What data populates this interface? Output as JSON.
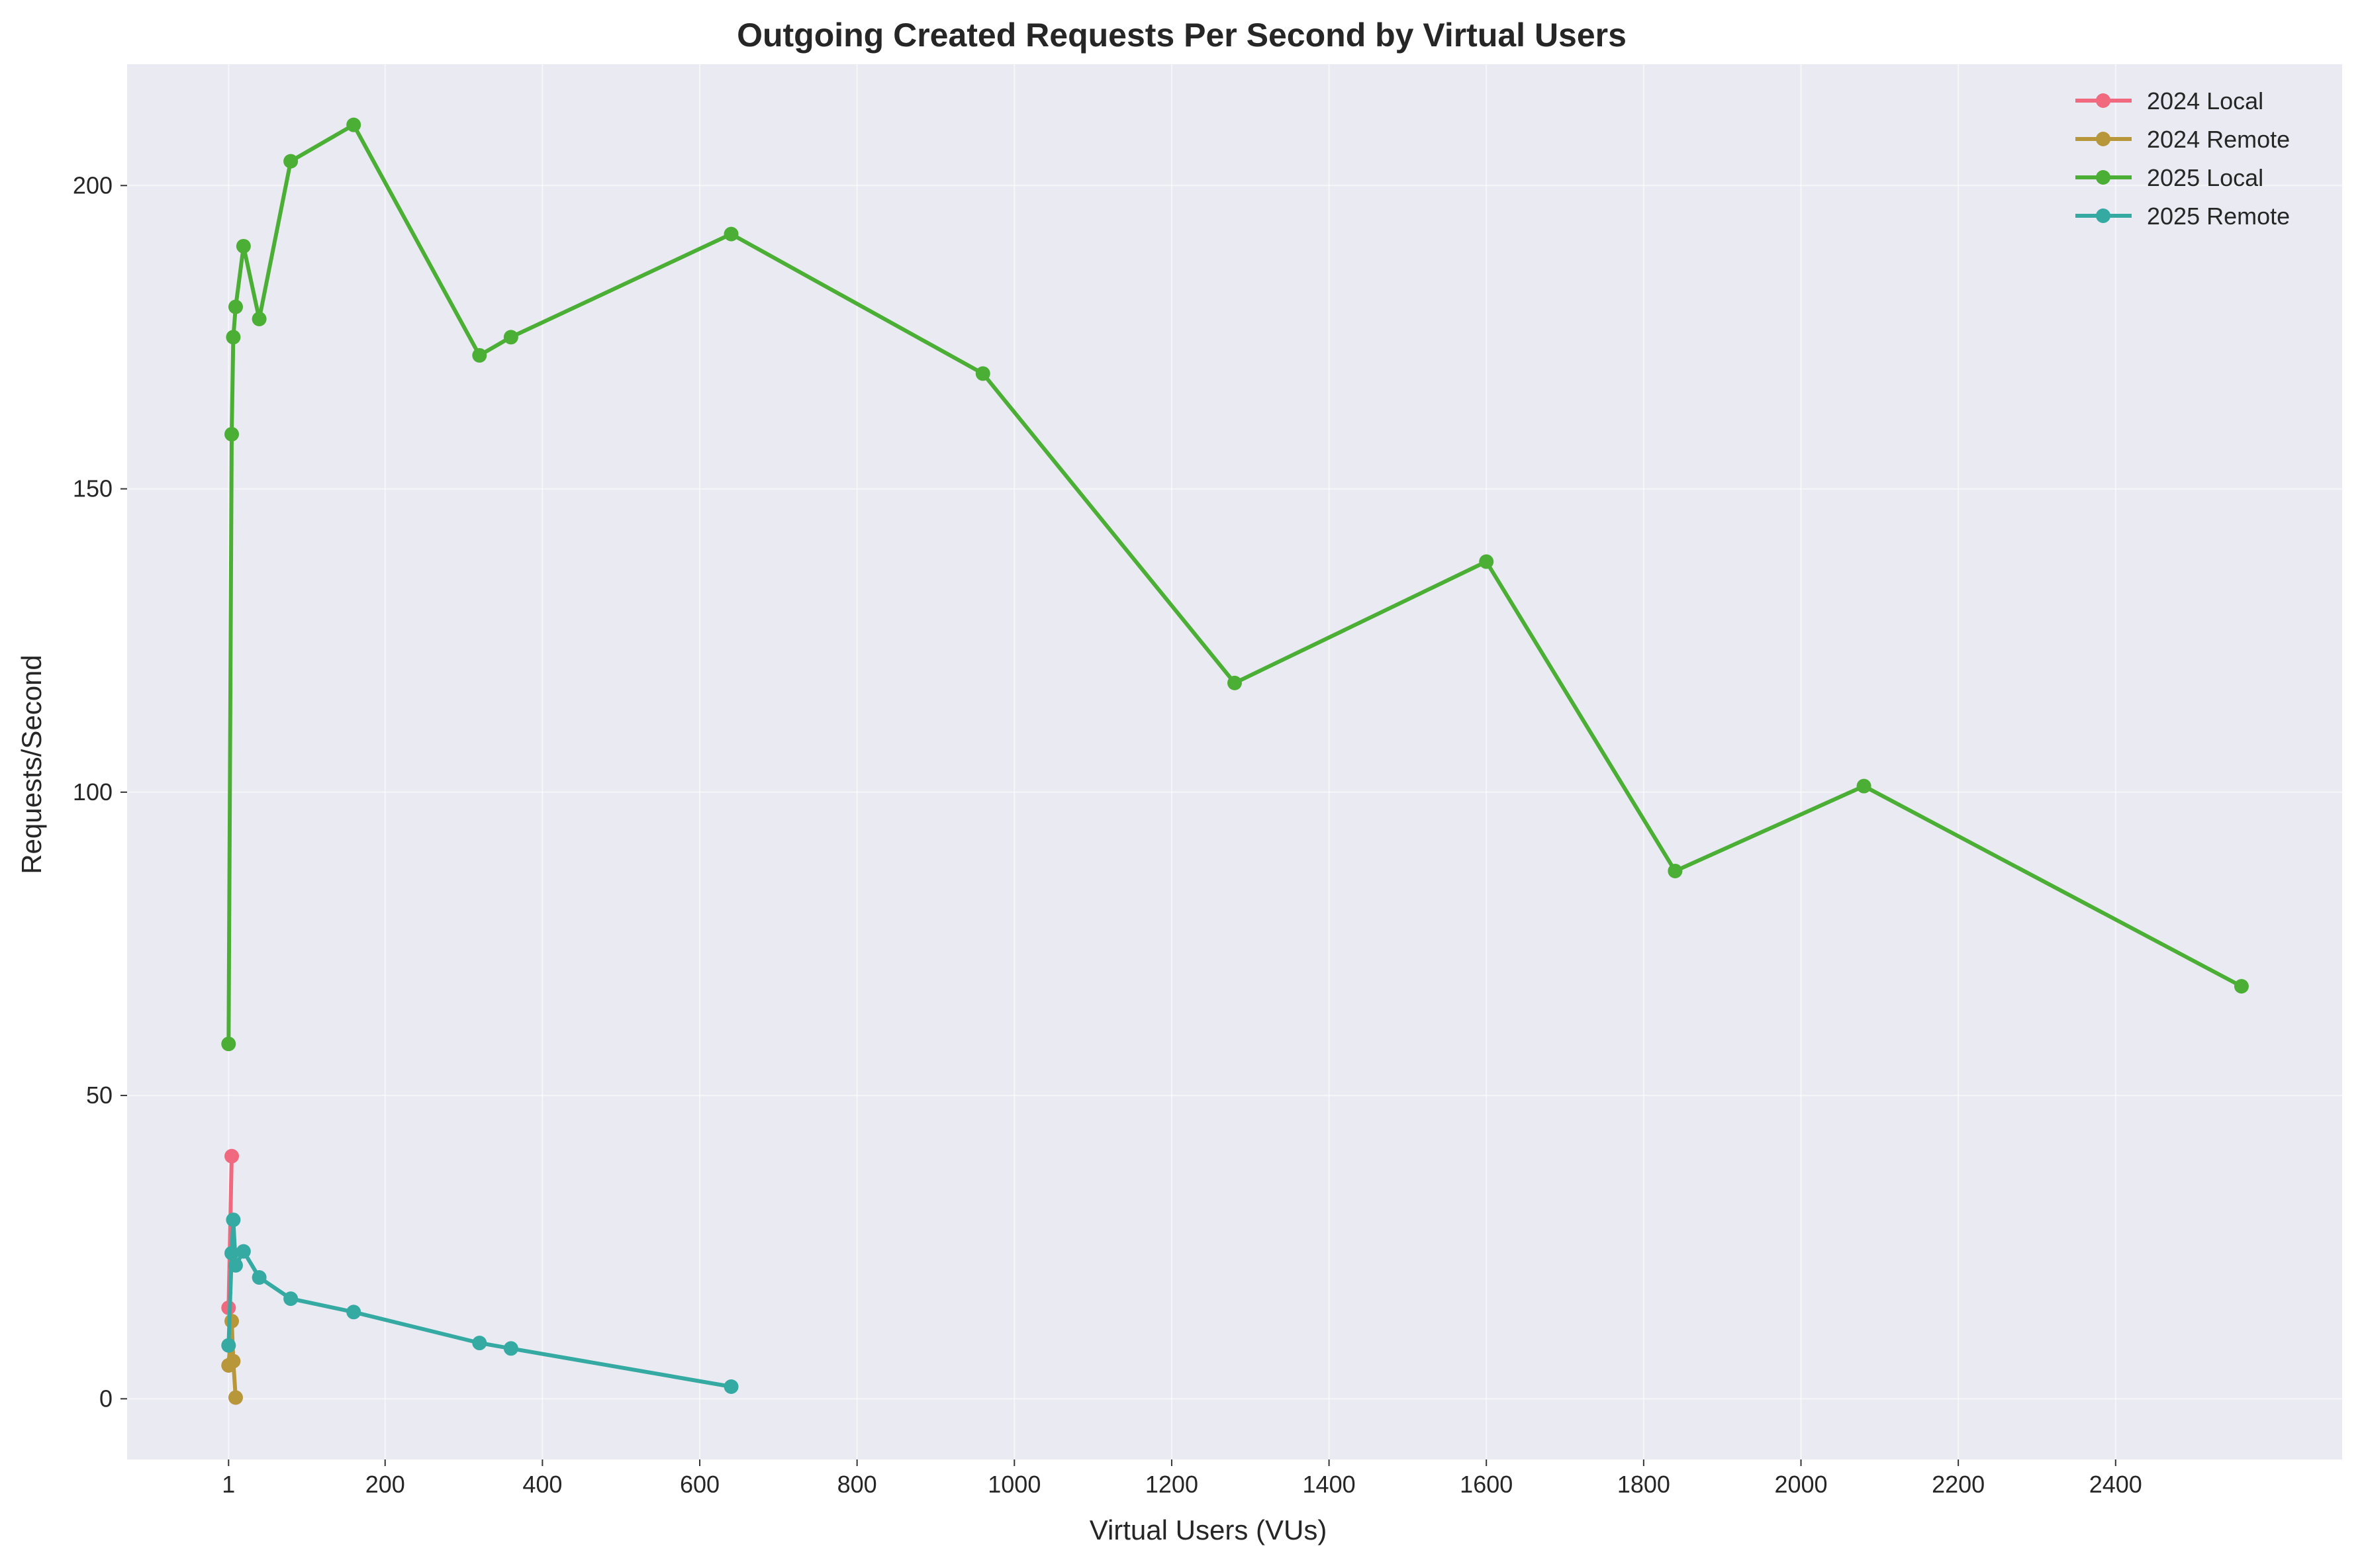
{
  "chart_data": {
    "type": "line",
    "title": "Outgoing Created Requests Per Second by Virtual Users",
    "xlabel": "Virtual Users (VUs)",
    "ylabel": "Requests/Second",
    "xlim": [
      -128,
      2688
    ],
    "ylim": [
      -10,
      220
    ],
    "xticks": [
      1,
      200,
      400,
      600,
      800,
      1000,
      1200,
      1400,
      1600,
      1800,
      2000,
      2200,
      2400
    ],
    "yticks": [
      0,
      50,
      100,
      150,
      200
    ],
    "grid": true,
    "legend_position": "top-right",
    "series": [
      {
        "name": "2024 Local",
        "color": "#f0697f",
        "x": [
          1,
          5
        ],
        "y": [
          15,
          40
        ]
      },
      {
        "name": "2024 Remote",
        "color": "#b8963a",
        "x": [
          1,
          5,
          7,
          10
        ],
        "y": [
          5.5,
          12.8,
          6.2,
          0.2
        ]
      },
      {
        "name": "2025 Local",
        "color": "#4caf35",
        "x": [
          1,
          5,
          7,
          10,
          20,
          40,
          80,
          160,
          320,
          360,
          640,
          960,
          1280,
          1600,
          1840,
          2080,
          2560
        ],
        "y": [
          58.5,
          159,
          175,
          180,
          190,
          178,
          204,
          210,
          172,
          175,
          192,
          169,
          118,
          138,
          87,
          101,
          68
        ]
      },
      {
        "name": "2025 Remote",
        "color": "#35aaa3",
        "x": [
          1,
          5,
          7,
          10,
          20,
          40,
          80,
          160,
          320,
          360,
          640
        ],
        "y": [
          8.8,
          24,
          29.5,
          22,
          24.3,
          20,
          16.5,
          14.3,
          9.2,
          8.3,
          2
        ]
      }
    ]
  }
}
